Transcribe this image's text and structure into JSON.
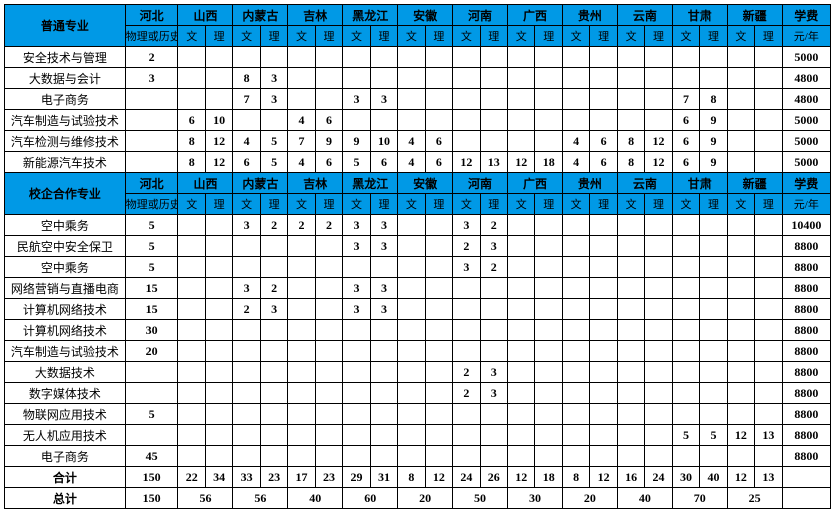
{
  "colors": {
    "header_bg": "#0099e6",
    "border": "#000000",
    "bg": "#ffffff"
  },
  "provinces": [
    "河北",
    "山西",
    "内蒙古",
    "吉林",
    "黑龙江",
    "安徽",
    "河南",
    "广西",
    "贵州",
    "云南",
    "甘肃",
    "新疆"
  ],
  "hebei_sub": "物理或历史",
  "wen": "文",
  "li": "理",
  "fee_header": "学费",
  "fee_sub": "元/年",
  "sections": [
    {
      "title": "普通专业",
      "rows": [
        {
          "major": "安全技术与管理",
          "hebei": "2",
          "cells": [
            "",
            "",
            "",
            "",
            "",
            "",
            "",
            "",
            "",
            "",
            "",
            "",
            "",
            "",
            "",
            "",
            "",
            "",
            "",
            "",
            "",
            ""
          ],
          "fee": "5000"
        },
        {
          "major": "大数据与会计",
          "hebei": "3",
          "cells": [
            "",
            "",
            "8",
            "3",
            "",
            "",
            "",
            "",
            "",
            "",
            "",
            "",
            "",
            "",
            "",
            "",
            "",
            "",
            "",
            "",
            "",
            ""
          ],
          "fee": "4800"
        },
        {
          "major": "电子商务",
          "hebei": "",
          "cells": [
            "",
            "",
            "7",
            "3",
            "",
            "",
            "3",
            "3",
            "",
            "",
            "",
            "",
            "",
            "",
            "",
            "",
            "",
            "",
            "7",
            "8",
            "",
            ""
          ],
          "fee": "4800"
        },
        {
          "major": "汽车制造与试验技术",
          "hebei": "",
          "cells": [
            "6",
            "10",
            "",
            "",
            "4",
            "6",
            "",
            "",
            "",
            "",
            "",
            "",
            "",
            "",
            "",
            "",
            "",
            "",
            "6",
            "9",
            "",
            ""
          ],
          "fee": "5000"
        },
        {
          "major": "汽车检测与维修技术",
          "hebei": "",
          "cells": [
            "8",
            "12",
            "4",
            "5",
            "7",
            "9",
            "9",
            "10",
            "4",
            "6",
            "",
            "",
            "",
            "",
            "4",
            "6",
            "8",
            "12",
            "6",
            "9",
            "",
            ""
          ],
          "fee": "5000"
        },
        {
          "major": "新能源汽车技术",
          "hebei": "",
          "cells": [
            "8",
            "12",
            "6",
            "5",
            "4",
            "6",
            "5",
            "6",
            "4",
            "6",
            "12",
            "13",
            "12",
            "18",
            "4",
            "6",
            "8",
            "12",
            "6",
            "9",
            "",
            ""
          ],
          "fee": "5000"
        }
      ]
    },
    {
      "title": "校企合作专业",
      "rows": [
        {
          "major": "空中乘务",
          "hebei": "5",
          "cells": [
            "",
            "",
            "3",
            "2",
            "2",
            "2",
            "3",
            "3",
            "",
            "",
            "3",
            "2",
            "",
            "",
            "",
            "",
            "",
            "",
            "",
            "",
            "",
            ""
          ],
          "fee": "10400"
        },
        {
          "major": "民航空中安全保卫",
          "hebei": "5",
          "cells": [
            "",
            "",
            "",
            "",
            "",
            "",
            "3",
            "3",
            "",
            "",
            "2",
            "3",
            "",
            "",
            "",
            "",
            "",
            "",
            "",
            "",
            "",
            ""
          ],
          "fee": "8800"
        },
        {
          "major": "空中乘务",
          "hebei": "5",
          "cells": [
            "",
            "",
            "",
            "",
            "",
            "",
            "",
            "",
            "",
            "",
            "3",
            "2",
            "",
            "",
            "",
            "",
            "",
            "",
            "",
            "",
            "",
            ""
          ],
          "fee": "8800"
        },
        {
          "major": "网络营销与直播电商",
          "hebei": "15",
          "cells": [
            "",
            "",
            "3",
            "2",
            "",
            "",
            "3",
            "3",
            "",
            "",
            "",
            "",
            "",
            "",
            "",
            "",
            "",
            "",
            "",
            "",
            "",
            ""
          ],
          "fee": "8800"
        },
        {
          "major": "计算机网络技术",
          "hebei": "15",
          "cells": [
            "",
            "",
            "2",
            "3",
            "",
            "",
            "3",
            "3",
            "",
            "",
            "",
            "",
            "",
            "",
            "",
            "",
            "",
            "",
            "",
            "",
            "",
            ""
          ],
          "fee": "8800"
        },
        {
          "major": "计算机网络技术",
          "hebei": "30",
          "cells": [
            "",
            "",
            "",
            "",
            "",
            "",
            "",
            "",
            "",
            "",
            "",
            "",
            "",
            "",
            "",
            "",
            "",
            "",
            "",
            "",
            "",
            ""
          ],
          "fee": "8800"
        },
        {
          "major": "汽车制造与试验技术",
          "hebei": "20",
          "cells": [
            "",
            "",
            "",
            "",
            "",
            "",
            "",
            "",
            "",
            "",
            "",
            "",
            "",
            "",
            "",
            "",
            "",
            "",
            "",
            "",
            "",
            ""
          ],
          "fee": "8800"
        },
        {
          "major": "大数据技术",
          "hebei": "",
          "cells": [
            "",
            "",
            "",
            "",
            "",
            "",
            "",
            "",
            "",
            "",
            "2",
            "3",
            "",
            "",
            "",
            "",
            "",
            "",
            "",
            "",
            "",
            ""
          ],
          "fee": "8800"
        },
        {
          "major": "数字媒体技术",
          "hebei": "",
          "cells": [
            "",
            "",
            "",
            "",
            "",
            "",
            "",
            "",
            "",
            "",
            "2",
            "3",
            "",
            "",
            "",
            "",
            "",
            "",
            "",
            "",
            "",
            ""
          ],
          "fee": "8800"
        },
        {
          "major": "物联网应用技术",
          "hebei": "5",
          "cells": [
            "",
            "",
            "",
            "",
            "",
            "",
            "",
            "",
            "",
            "",
            "",
            "",
            "",
            "",
            "",
            "",
            "",
            "",
            "",
            "",
            "",
            ""
          ],
          "fee": "8800"
        },
        {
          "major": "无人机应用技术",
          "hebei": "",
          "cells": [
            "",
            "",
            "",
            "",
            "",
            "",
            "",
            "",
            "",
            "",
            "",
            "",
            "",
            "",
            "",
            "",
            "",
            "",
            "5",
            "5",
            "12",
            "13"
          ],
          "fee": "8800"
        },
        {
          "major": "电子商务",
          "hebei": "45",
          "cells": [
            "",
            "",
            "",
            "",
            "",
            "",
            "",
            "",
            "",
            "",
            "",
            "",
            "",
            "",
            "",
            "",
            "",
            "",
            "",
            "",
            "",
            ""
          ],
          "fee": "8800"
        }
      ]
    }
  ],
  "subtotal": {
    "label": "合计",
    "hebei": "150",
    "cells": [
      "22",
      "34",
      "33",
      "23",
      "17",
      "23",
      "29",
      "31",
      "8",
      "12",
      "24",
      "26",
      "12",
      "18",
      "8",
      "12",
      "16",
      "24",
      "30",
      "40",
      "12",
      "13"
    ],
    "fee": ""
  },
  "grandtotal": {
    "label": "总计",
    "hebei": "150",
    "pairs": [
      "56",
      "56",
      "40",
      "60",
      "20",
      "50",
      "30",
      "20",
      "40",
      "70",
      "25"
    ],
    "fee": ""
  }
}
